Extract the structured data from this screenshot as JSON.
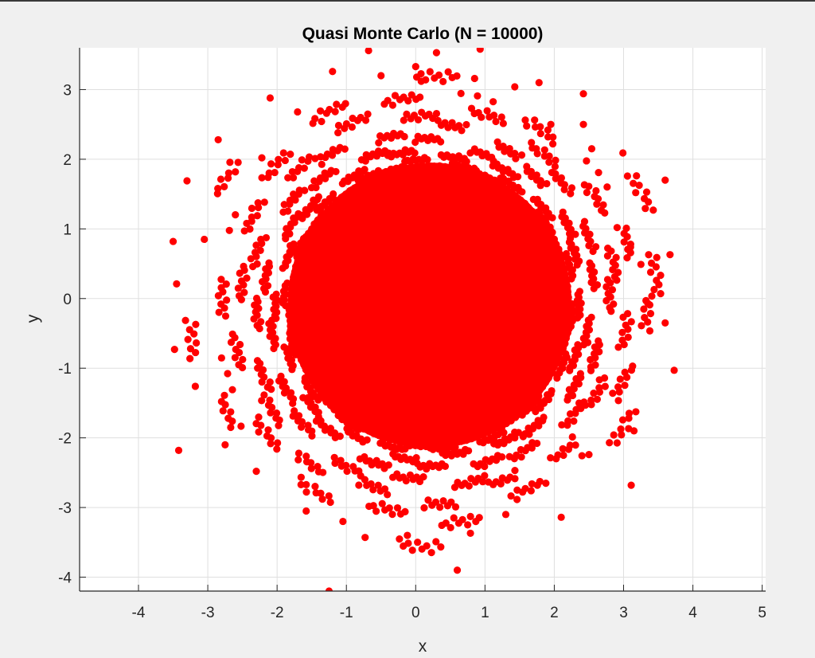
{
  "chart_data": {
    "type": "scatter",
    "title": "Quasi Monte Carlo (N = 10000)",
    "xlabel": "x",
    "ylabel": "y",
    "xlim": [
      -4.85,
      5.05
    ],
    "ylim": [
      -4.2,
      3.6
    ],
    "xticks": [
      -4,
      -3,
      -2,
      -1,
      0,
      1,
      2,
      3,
      4,
      5
    ],
    "yticks": [
      -4,
      -3,
      -2,
      -1,
      0,
      1,
      2,
      3
    ],
    "grid": true,
    "legend": "none",
    "series": [
      {
        "color": "#ff0000",
        "marker": "filled-circle",
        "core_region": {
          "center_x": 0.2,
          "center_y": -0.1,
          "radius": 2.05
        },
        "values": [
          [
            -0.68,
            3.56
          ],
          [
            0.3,
            3.53
          ],
          [
            0.93,
            3.58
          ],
          [
            0.0,
            3.33
          ],
          [
            -1.2,
            3.26
          ],
          [
            0.08,
            3.12
          ],
          [
            0.85,
            3.16
          ],
          [
            -0.5,
            3.2
          ],
          [
            1.43,
            3.04
          ],
          [
            1.78,
            3.1
          ],
          [
            -2.1,
            2.88
          ],
          [
            2.42,
            2.94
          ],
          [
            -2.85,
            2.28
          ],
          [
            2.54,
            2.15
          ],
          [
            2.99,
            2.09
          ],
          [
            -3.3,
            1.69
          ],
          [
            3.6,
            1.7
          ],
          [
            -3.5,
            0.82
          ],
          [
            3.67,
            0.63
          ],
          [
            -3.45,
            0.21
          ],
          [
            3.35,
            -0.07
          ],
          [
            -3.48,
            -0.73
          ],
          [
            3.6,
            -0.35
          ],
          [
            3.73,
            -1.03
          ],
          [
            -3.18,
            -1.26
          ],
          [
            3.13,
            -0.97
          ],
          [
            -3.42,
            -2.18
          ],
          [
            3.11,
            -2.68
          ],
          [
            -2.3,
            -2.48
          ],
          [
            2.1,
            -3.14
          ],
          [
            -1.58,
            -3.05
          ],
          [
            1.3,
            -3.1
          ],
          [
            -1.05,
            -3.2
          ],
          [
            0.79,
            -3.37
          ],
          [
            -0.73,
            -3.43
          ],
          [
            -0.12,
            -3.4
          ],
          [
            0.6,
            -3.9
          ],
          [
            -1.25,
            -4.2
          ],
          [
            3.15,
            -1.9
          ],
          [
            2.5,
            -2.24
          ],
          [
            -2.75,
            -2.1
          ],
          [
            3.25,
            0.49
          ],
          [
            -3.05,
            0.85
          ],
          [
            3.1,
            0.74
          ],
          [
            2.42,
            2.5
          ],
          [
            -2.22,
            2.02
          ],
          [
            1.95,
            2.5
          ]
        ]
      }
    ]
  }
}
